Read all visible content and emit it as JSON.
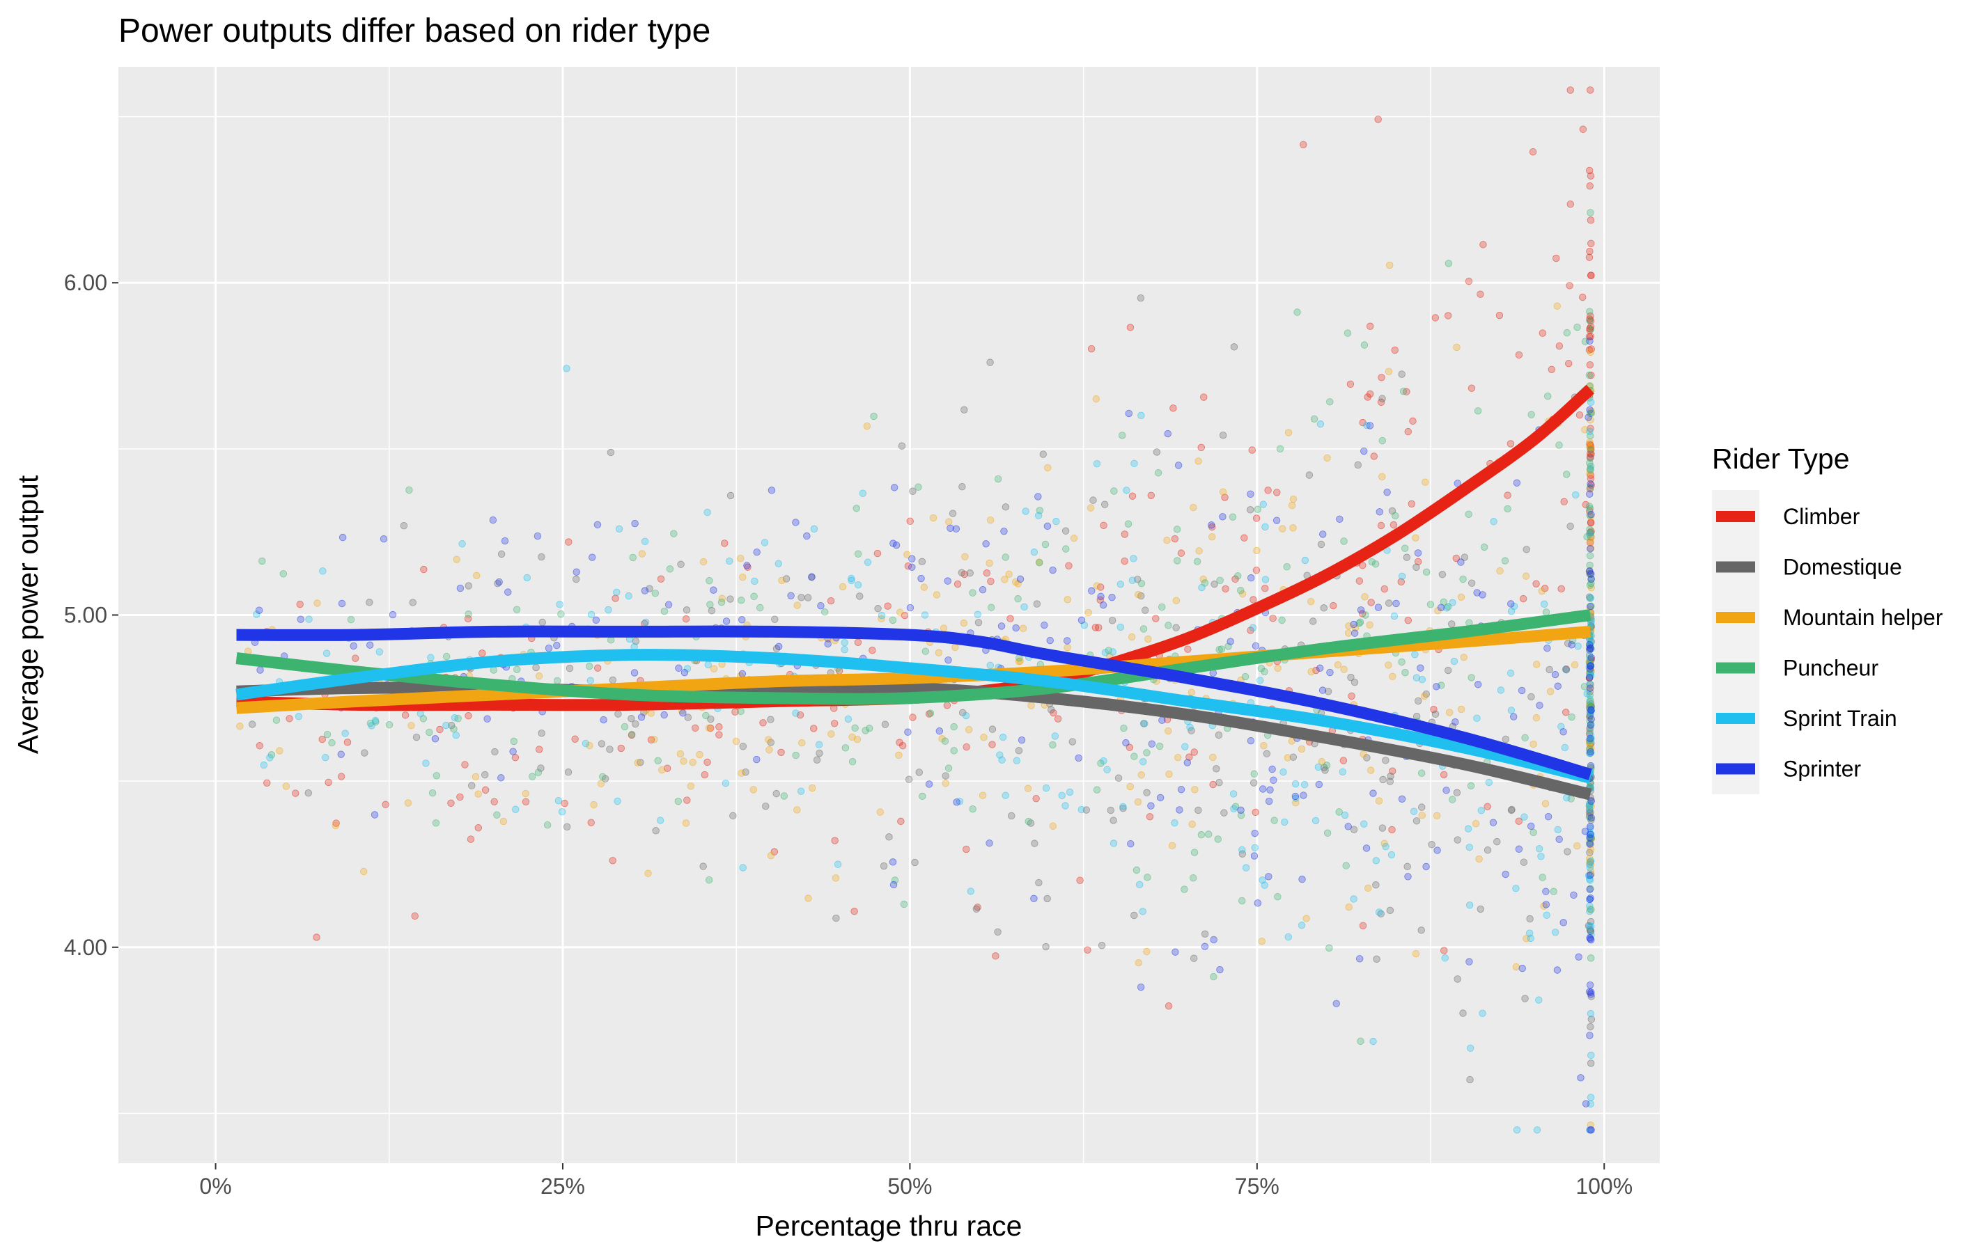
{
  "chart_data": {
    "type": "scatter",
    "title": "Power outputs differ based on rider type",
    "xlabel": "Percentage thru race",
    "ylabel": "Average power output",
    "xlim": [
      -0.07,
      1.04
    ],
    "ylim": [
      3.35,
      6.65
    ],
    "x_ticks": [
      0,
      0.25,
      0.5,
      0.75,
      1.0
    ],
    "x_tick_labels": [
      "0%",
      "25%",
      "50%",
      "75%",
      "100%"
    ],
    "y_ticks": [
      4.0,
      5.0,
      6.0
    ],
    "y_tick_labels": [
      "4.00",
      "5.00",
      "6.00"
    ],
    "grid": true,
    "legend": {
      "title": "Rider Type",
      "placement": "right"
    },
    "point_alpha": 0.3,
    "series": [
      {
        "name": "Climber",
        "color": "#E62314",
        "smooth_x": [
          0.015,
          0.1,
          0.2,
          0.3,
          0.4,
          0.5,
          0.55,
          0.6,
          0.65,
          0.7,
          0.75,
          0.8,
          0.85,
          0.9,
          0.95,
          0.99
        ],
        "smooth_y": [
          4.74,
          4.73,
          4.73,
          4.73,
          4.74,
          4.75,
          4.77,
          4.8,
          4.86,
          4.93,
          5.02,
          5.12,
          5.24,
          5.38,
          5.53,
          5.68
        ]
      },
      {
        "name": "Domestique",
        "color": "#666666",
        "smooth_x": [
          0.015,
          0.1,
          0.2,
          0.3,
          0.4,
          0.5,
          0.6,
          0.7,
          0.8,
          0.9,
          0.99
        ],
        "smooth_y": [
          4.77,
          4.78,
          4.78,
          4.77,
          4.77,
          4.78,
          4.75,
          4.7,
          4.63,
          4.55,
          4.46
        ]
      },
      {
        "name": "Mountain helper",
        "color": "#F2A512",
        "smooth_x": [
          0.015,
          0.1,
          0.2,
          0.3,
          0.4,
          0.5,
          0.6,
          0.7,
          0.8,
          0.9,
          0.99
        ],
        "smooth_y": [
          4.72,
          4.74,
          4.76,
          4.78,
          4.8,
          4.81,
          4.83,
          4.86,
          4.89,
          4.92,
          4.95
        ]
      },
      {
        "name": "Puncheur",
        "color": "#3DB370",
        "smooth_x": [
          0.015,
          0.1,
          0.2,
          0.3,
          0.4,
          0.5,
          0.6,
          0.7,
          0.8,
          0.9,
          0.99
        ],
        "smooth_y": [
          4.87,
          4.83,
          4.79,
          4.76,
          4.75,
          4.75,
          4.78,
          4.84,
          4.9,
          4.95,
          5.0
        ]
      },
      {
        "name": "Sprint Train",
        "color": "#1FBFEF",
        "smooth_x": [
          0.015,
          0.1,
          0.2,
          0.3,
          0.4,
          0.5,
          0.6,
          0.7,
          0.8,
          0.9,
          0.99
        ],
        "smooth_y": [
          4.76,
          4.81,
          4.86,
          4.88,
          4.87,
          4.84,
          4.8,
          4.74,
          4.68,
          4.6,
          4.51
        ]
      },
      {
        "name": "Sprinter",
        "color": "#1F35E6",
        "smooth_x": [
          0.015,
          0.1,
          0.2,
          0.3,
          0.4,
          0.5,
          0.55,
          0.6,
          0.7,
          0.8,
          0.9,
          0.99
        ],
        "smooth_y": [
          4.94,
          4.94,
          4.95,
          4.95,
          4.95,
          4.94,
          4.92,
          4.88,
          4.81,
          4.73,
          4.63,
          4.52
        ]
      }
    ]
  }
}
